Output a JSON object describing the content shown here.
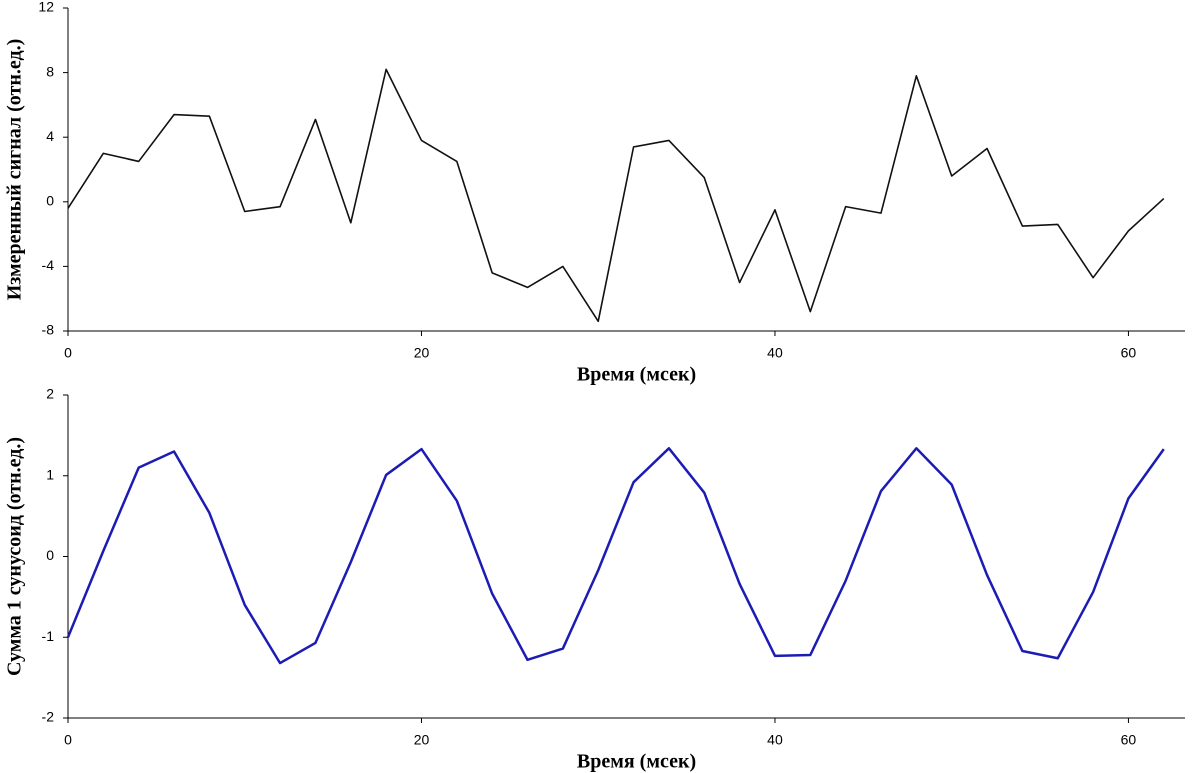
{
  "chart_data": [
    {
      "type": "line",
      "x_label": "Время (мсек)",
      "y_label": "Измеренный сигнал (отн.ед.)",
      "x": [
        0,
        2,
        4,
        6,
        8,
        10,
        12,
        14,
        16,
        18,
        20,
        22,
        24,
        26,
        28,
        30,
        32,
        34,
        36,
        38,
        40,
        42,
        44,
        46,
        48,
        50,
        52,
        54,
        56,
        58,
        60,
        62
      ],
      "series": [
        {
          "color": "#111111",
          "values": [
            -0.4,
            3.0,
            2.5,
            5.4,
            5.3,
            -0.6,
            -0.3,
            5.1,
            -1.3,
            8.2,
            3.8,
            2.5,
            -4.4,
            -5.3,
            -4.0,
            -7.4,
            3.4,
            3.8,
            1.5,
            -5.0,
            -0.5,
            -6.8,
            -0.3,
            -0.7,
            7.8,
            1.6,
            3.3,
            -1.5,
            -1.4,
            -4.7,
            -1.8,
            0.2
          ]
        }
      ],
      "xlim": [
        0,
        63.2
      ],
      "xticks": [
        0,
        20,
        40,
        60
      ],
      "ylim": [
        -8,
        12
      ],
      "yticks": [
        -8,
        -4,
        0,
        4,
        8,
        12
      ]
    },
    {
      "type": "line",
      "x_label": "Время (мсек)",
      "y_label": "Сумма 1 сунусоид (отн.ед.)",
      "x": [
        0,
        2,
        4,
        6,
        8,
        10,
        12,
        14,
        16,
        18,
        20,
        22,
        24,
        26,
        28,
        30,
        32,
        34,
        36,
        38,
        40,
        42,
        44,
        46,
        48,
        50,
        52,
        54,
        56,
        58,
        60,
        62
      ],
      "series": [
        {
          "color": "#1c1cb4",
          "values": [
            -1.0,
            0.07,
            1.1,
            1.3,
            0.54,
            -0.6,
            -1.32,
            -1.07,
            -0.07,
            1.01,
            1.33,
            0.69,
            -0.46,
            -1.28,
            -1.14,
            -0.17,
            0.92,
            1.34,
            0.79,
            -0.34,
            -1.23,
            -1.22,
            -0.3,
            0.81,
            1.34,
            0.89,
            -0.23,
            -1.17,
            -1.26,
            -0.44,
            0.72,
            1.33
          ]
        }
      ],
      "xlim": [
        0,
        63.2
      ],
      "xticks": [
        0,
        20,
        40,
        60
      ],
      "ylim": [
        -2,
        2
      ],
      "yticks": [
        -2,
        -1,
        0,
        1,
        2
      ]
    }
  ]
}
